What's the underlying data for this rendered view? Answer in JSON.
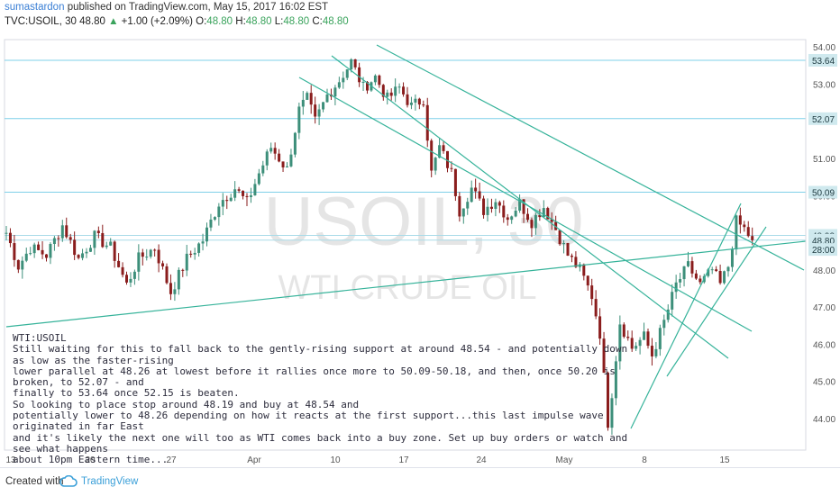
{
  "header": {
    "author": "sumastardon",
    "published_text": "published on TradingView.com, May 15, 2017 16:02 EST",
    "symbol": "TVC:USOIL, 30",
    "last": "48.80",
    "change_arrow": "▲",
    "change": "+1.00 (+2.09%)",
    "o_label": "O:",
    "o_val": "48.80",
    "h_label": "H:",
    "h_val": "48.80",
    "l_label": "L:",
    "l_val": "48.80",
    "c_label": "C:",
    "c_val": "48.80"
  },
  "watermark": {
    "main": "USOIL, 30",
    "sub": "WTI CRUDE OIL"
  },
  "note": {
    "lines": [
      "WTI:USOIL",
      "Still waiting for this to fall back to the gently-rising support at around 48.54 - and potentially down as low as the faster-rising",
      "lower parallel at 48.26 at lowest before it rallies once more to 50.09-50.18, and then, once 50.20 is broken, to 52.07 - and",
      "finally to 53.64 once 52.15 is beaten.",
      "So looking to place stop around 48.19 and buy at 48.54 and",
      "potentially lower to 48.26 depending on how it reacts at the first support...this last impulse wave originated in far East",
      "and it's likely the next one will too as WTI comes back into a buy zone. Set up buy orders or watch and see what happens",
      "about 10pm Eastern time..."
    ]
  },
  "footer": {
    "created": "Created with",
    "brand": "TradingView"
  },
  "colors": {
    "candle_up": "#3d8f7a",
    "candle_down": "#8a1d1d",
    "trend": "#36b39a",
    "level": "#7fd0e8",
    "price_tag": "#cfe9ee"
  },
  "chart_data": {
    "type": "candlestick",
    "ylim": [
      43.2,
      54.1
    ],
    "y_ticks": [
      44.0,
      45.0,
      46.0,
      47.0,
      48.0,
      49.0,
      50.0,
      51.0,
      52.0,
      53.0,
      54.0
    ],
    "x_ticks": [
      "13",
      "20",
      "27",
      "Apr",
      "10",
      "17",
      "24",
      "May",
      "8",
      "15"
    ],
    "horizontal_levels": [
      53.64,
      52.07,
      50.09,
      48.93,
      48.8
    ],
    "price_tags": [
      {
        "label": "53.64",
        "value": 53.64
      },
      {
        "label": "52.07",
        "value": 52.07
      },
      {
        "label": "50.09",
        "value": 50.09
      },
      {
        "label": "48.93",
        "value": 48.93
      },
      {
        "label": "48.80",
        "value": 48.8
      },
      {
        "label": "28:00",
        "value": 48.55
      }
    ],
    "price_path": [
      [
        0,
        49.0
      ],
      [
        3,
        48.1
      ],
      [
        6,
        48.6
      ],
      [
        10,
        48.4
      ],
      [
        14,
        49.2
      ],
      [
        18,
        48.3
      ],
      [
        22,
        48.9
      ],
      [
        26,
        48.6
      ],
      [
        30,
        47.6
      ],
      [
        33,
        48.3
      ],
      [
        37,
        48.6
      ],
      [
        41,
        47.4
      ],
      [
        45,
        48.3
      ],
      [
        49,
        48.8
      ],
      [
        53,
        49.8
      ],
      [
        57,
        50.2
      ],
      [
        60,
        49.8
      ],
      [
        63,
        50.6
      ],
      [
        66,
        51.3
      ],
      [
        70,
        50.7
      ],
      [
        73,
        52.3
      ],
      [
        75,
        52.6
      ],
      [
        77,
        52.0
      ],
      [
        80,
        52.7
      ],
      [
        83,
        53.1
      ],
      [
        86,
        53.6
      ],
      [
        89,
        52.9
      ],
      [
        92,
        53.2
      ],
      [
        95,
        52.6
      ],
      [
        98,
        52.9
      ],
      [
        101,
        52.4
      ],
      [
        104,
        52.6
      ],
      [
        106,
        50.6
      ],
      [
        108,
        51.3
      ],
      [
        111,
        50.6
      ],
      [
        113,
        49.6
      ],
      [
        116,
        50.2
      ],
      [
        119,
        49.6
      ],
      [
        122,
        49.9
      ],
      [
        125,
        49.4
      ],
      [
        128,
        49.8
      ],
      [
        131,
        49.3
      ],
      [
        134,
        49.7
      ],
      [
        137,
        49.1
      ],
      [
        140,
        48.4
      ],
      [
        143,
        48.0
      ],
      [
        146,
        47.3
      ],
      [
        148,
        46.3
      ],
      [
        150,
        43.9
      ],
      [
        151,
        44.7
      ],
      [
        153,
        46.6
      ],
      [
        156,
        45.9
      ],
      [
        159,
        46.2
      ],
      [
        161,
        45.7
      ],
      [
        164,
        46.6
      ],
      [
        167,
        47.6
      ],
      [
        170,
        48.1
      ],
      [
        173,
        47.6
      ],
      [
        176,
        48.0
      ],
      [
        178,
        47.6
      ],
      [
        180,
        48.1
      ],
      [
        182,
        49.3
      ],
      [
        184,
        49.1
      ],
      [
        186,
        48.8
      ]
    ]
  }
}
